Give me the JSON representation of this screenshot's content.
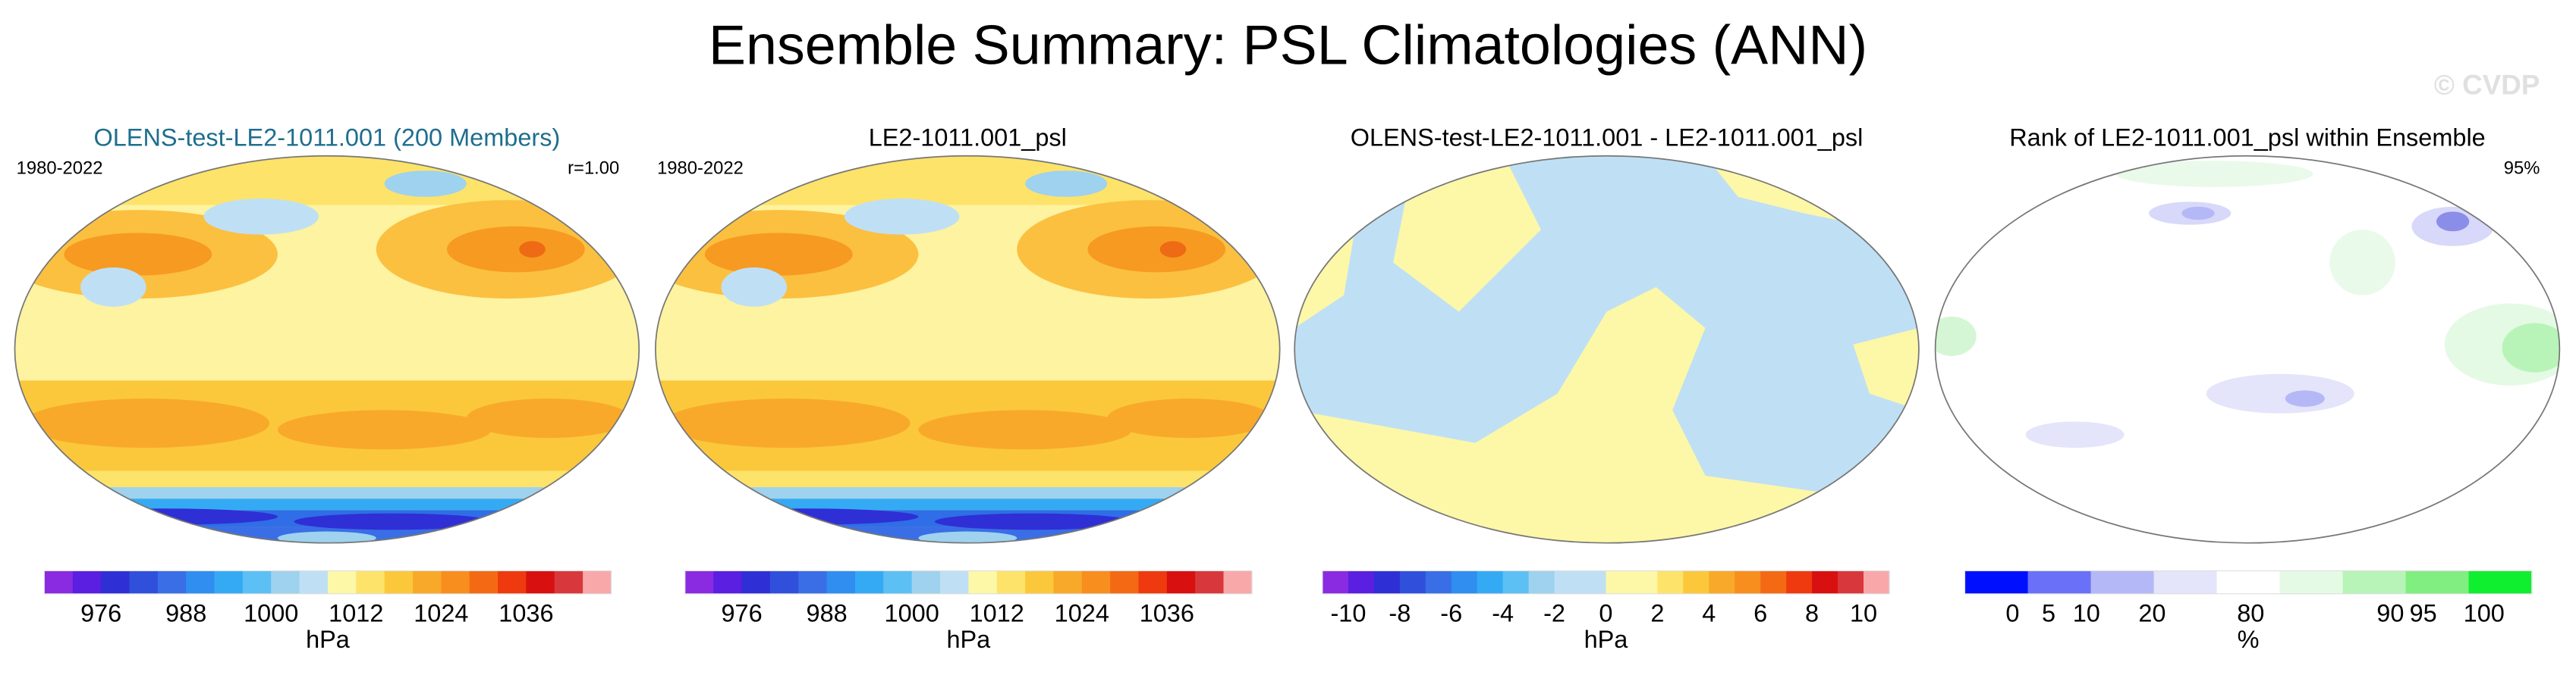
{
  "title": "Ensemble Summary: PSL Climatologies (ANN)",
  "watermark": "© CVDP",
  "panels": [
    {
      "title": "OLENS-test-LE2-1011.001 (200 Members)",
      "period": "1980-2022",
      "stat": "r=1.00",
      "colorbar": {
        "colors": [
          "#8a2be2",
          "#5a1fe0",
          "#2f2fd6",
          "#3050dc",
          "#3a6ee6",
          "#2f8ef0",
          "#35aaf4",
          "#5cc0f5",
          "#9ed2ee",
          "#bfe0f4",
          "#fdf7a8",
          "#fde36a",
          "#fbc83c",
          "#f9a92a",
          "#f78e1e",
          "#f46a14",
          "#ee3a0e",
          "#d81010",
          "#d8383c",
          "#f8a8a8"
        ],
        "ticks": [
          976,
          988,
          1000,
          1012,
          1024,
          1036
        ],
        "unit": "hPa"
      }
    },
    {
      "title": "LE2-1011.001_psl",
      "period": "1980-2022",
      "colorbar": {
        "colors": [
          "#8a2be2",
          "#5a1fe0",
          "#2f2fd6",
          "#3050dc",
          "#3a6ee6",
          "#2f8ef0",
          "#35aaf4",
          "#5cc0f5",
          "#9ed2ee",
          "#bfe0f4",
          "#fdf7a8",
          "#fde36a",
          "#fbc83c",
          "#f9a92a",
          "#f78e1e",
          "#f46a14",
          "#ee3a0e",
          "#d81010",
          "#d8383c",
          "#f8a8a8"
        ],
        "ticks": [
          976,
          988,
          1000,
          1012,
          1024,
          1036
        ],
        "unit": "hPa"
      }
    },
    {
      "title": "OLENS-test-LE2-1011.001 - LE2-1011.001_psl",
      "colorbar": {
        "colors": [
          "#8a2be2",
          "#5a1fe0",
          "#2f2fd6",
          "#3050dc",
          "#3a6ee6",
          "#2f8ef0",
          "#35aaf4",
          "#5cc0f5",
          "#9ed2ee",
          "#bfe0f4",
          "#bfe0f4",
          "#fdf7a8",
          "#fdf7a8",
          "#fde36a",
          "#fbc83c",
          "#f9a92a",
          "#f78e1e",
          "#f46a14",
          "#ee3a0e",
          "#d81010",
          "#d8383c",
          "#f8a8a8"
        ],
        "ticks": [
          -10,
          -8,
          -6,
          -4,
          -2,
          0,
          2,
          4,
          6,
          8,
          10
        ],
        "unit": "hPa"
      }
    },
    {
      "title": "Rank of LE2-1011.001_psl within Ensemble",
      "stat": "95%",
      "colorbar": {
        "colors": [
          "#0010ff",
          "#6a70f8",
          "#b4b8f6",
          "#e4e4fa",
          "#ffffff",
          "#e4fae4",
          "#b8f4b8",
          "#80ee80",
          "#10ee30"
        ],
        "ticks": [
          0,
          5,
          10,
          20,
          80,
          90,
          95,
          100
        ],
        "unit": "%"
      }
    }
  ]
}
